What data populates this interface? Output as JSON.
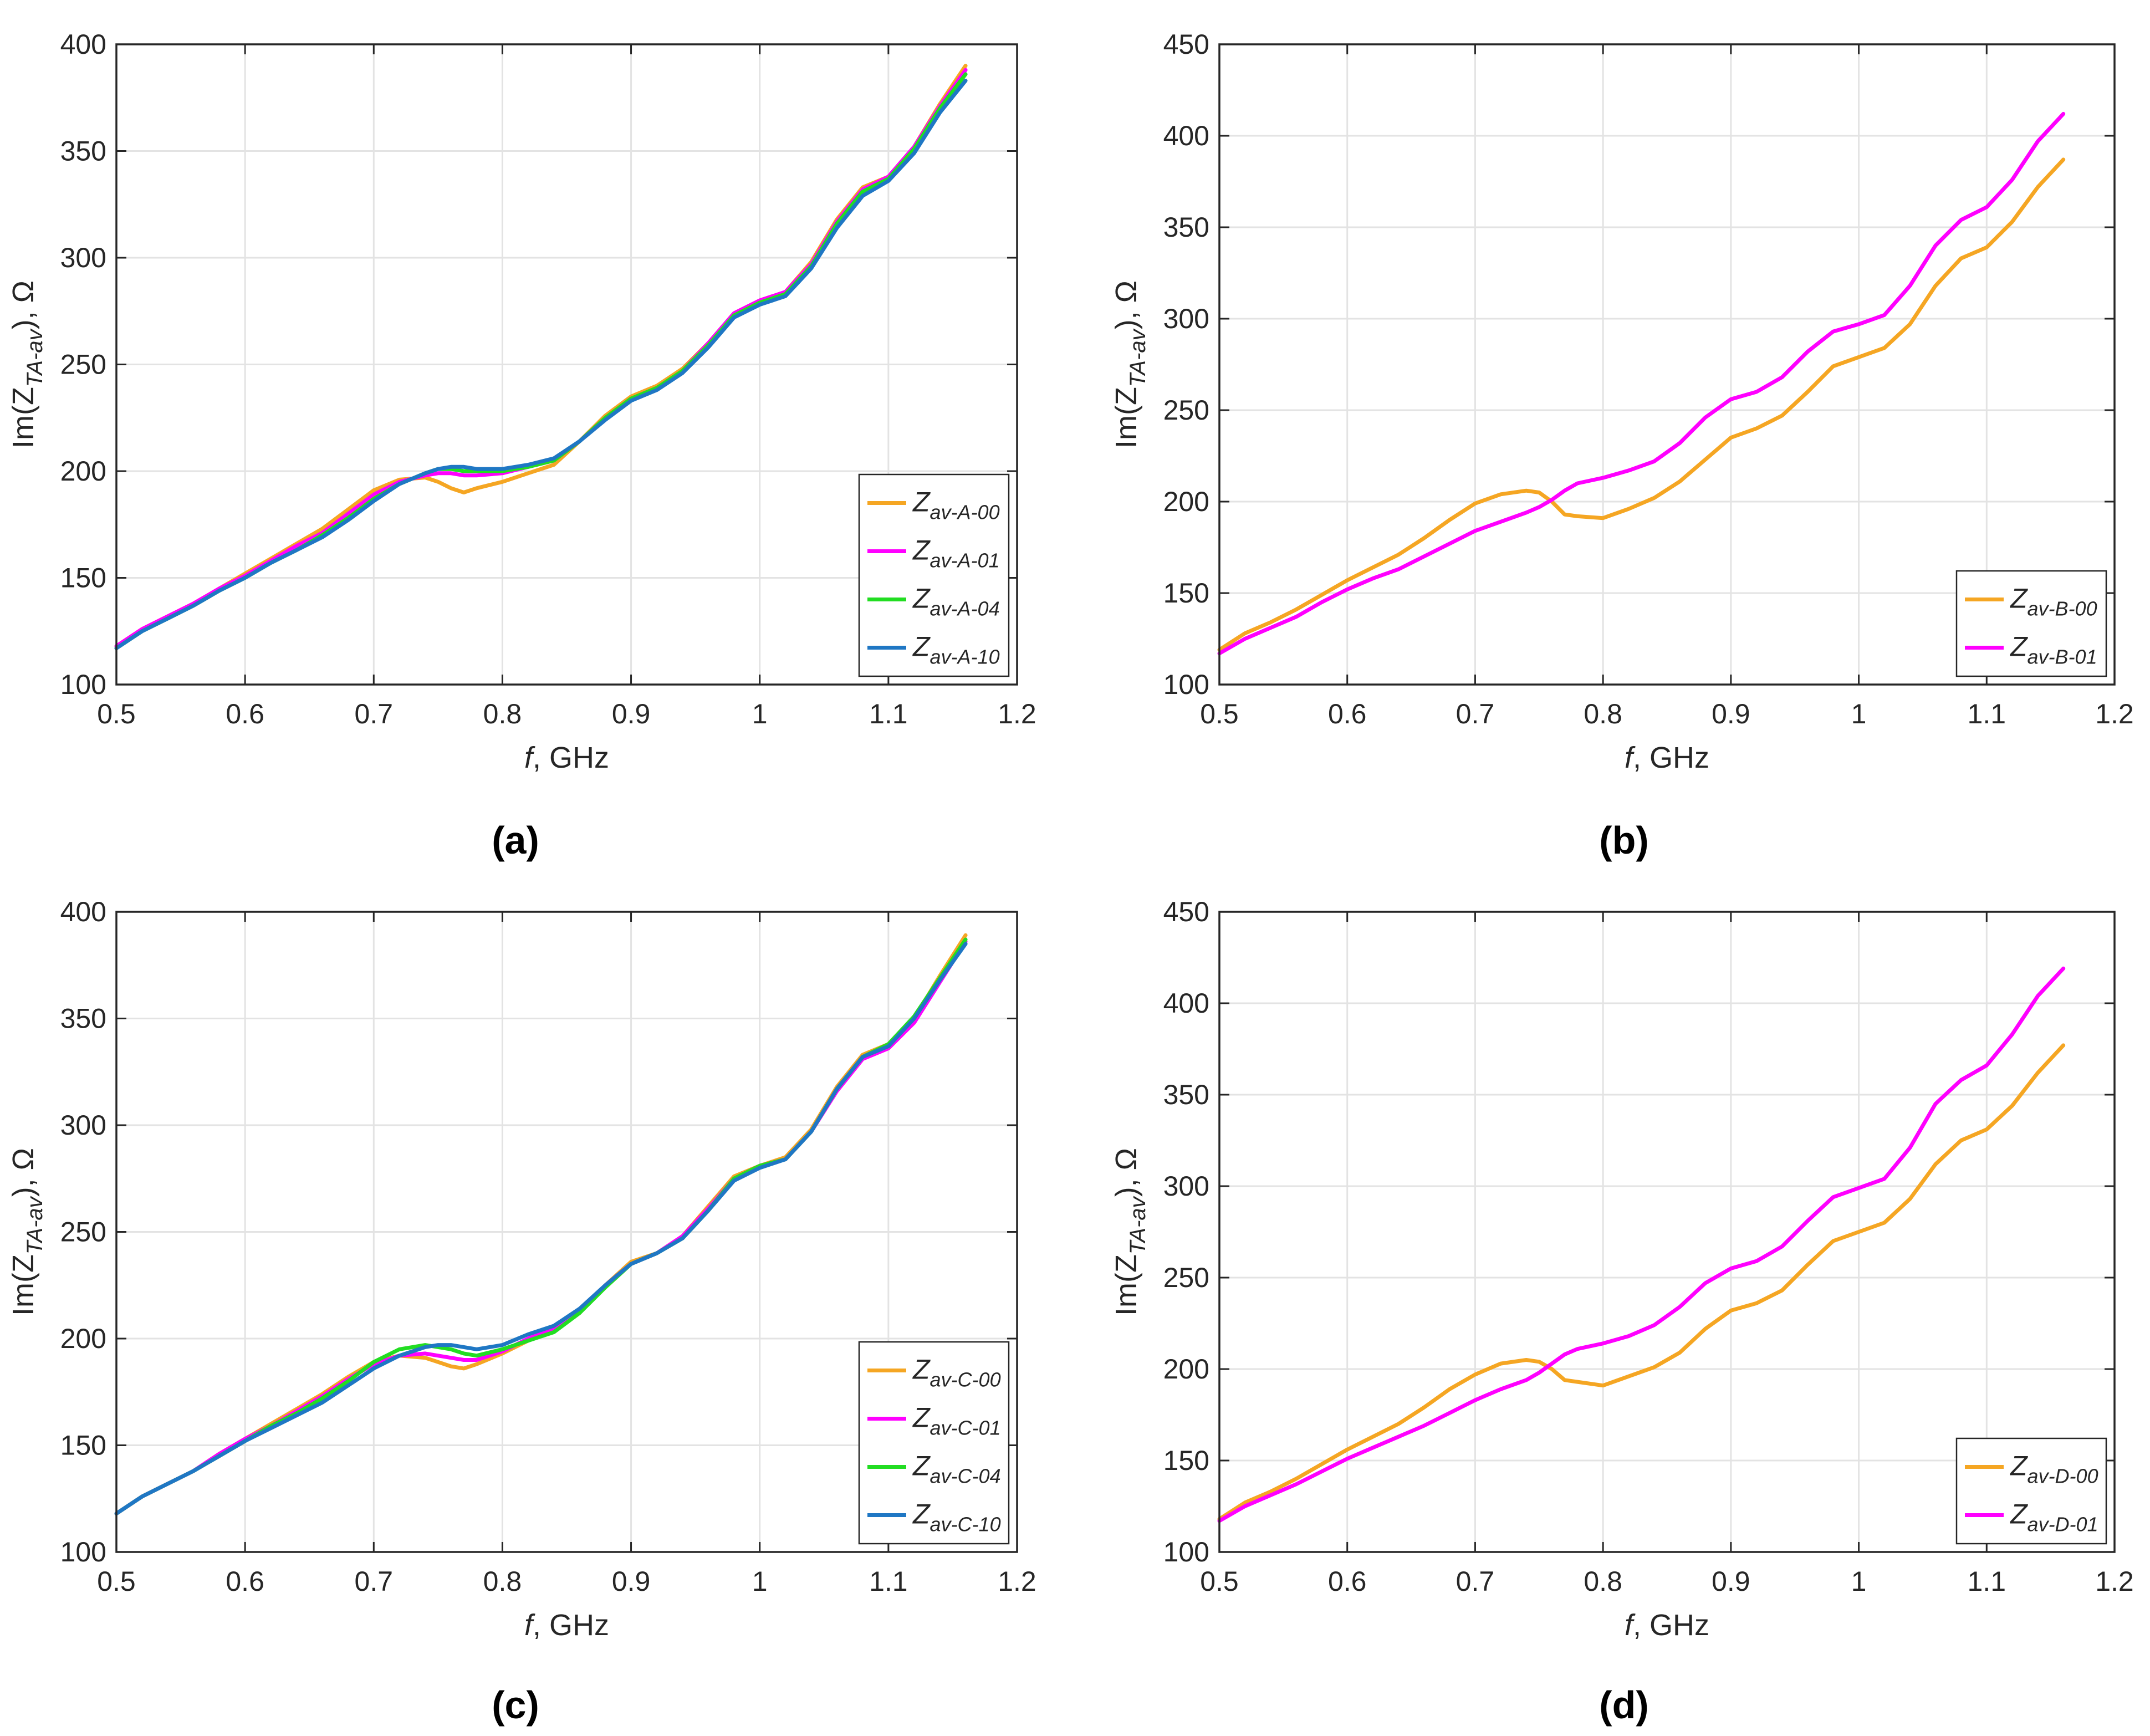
{
  "figure": {
    "panel_labels": [
      "(a)",
      "(b)",
      "(c)",
      "(d)"
    ]
  },
  "chart_data": [
    {
      "id": "a",
      "panel_label": "(a)",
      "type": "line",
      "xlabel_italic": "f",
      "xlabel_rest": ", GHz",
      "ylabel_prefix": "Im(Z",
      "ylabel_sub": "TA-av",
      "ylabel_suffix": "), Ω",
      "xlim": [
        0.5,
        1.2
      ],
      "ylim": [
        100,
        400
      ],
      "xticks": [
        0.5,
        0.6,
        0.7,
        0.8,
        0.9,
        1,
        1.1,
        1.2
      ],
      "yticks": [
        100,
        150,
        200,
        250,
        300,
        350,
        400
      ],
      "grid": true,
      "legend_position": "bottom-right",
      "x": [
        0.5,
        0.52,
        0.54,
        0.56,
        0.58,
        0.6,
        0.62,
        0.64,
        0.66,
        0.68,
        0.7,
        0.72,
        0.74,
        0.75,
        0.76,
        0.77,
        0.78,
        0.8,
        0.82,
        0.84,
        0.86,
        0.88,
        0.9,
        0.92,
        0.94,
        0.96,
        0.98,
        1.0,
        1.02,
        1.04,
        1.06,
        1.08,
        1.1,
        1.12,
        1.14,
        1.16,
        1.18,
        1.2
      ],
      "series": [
        {
          "name": "Z",
          "sub": "av-A-00",
          "color": "#f5a623",
          "values": [
            118,
            126,
            132,
            138,
            145,
            152,
            159,
            166,
            173,
            182,
            191,
            196,
            197,
            195,
            192,
            190,
            192,
            195,
            199,
            203,
            214,
            226,
            235,
            240,
            248,
            260,
            274,
            280,
            284,
            298,
            318,
            333,
            338,
            352,
            372,
            390,
            null,
            null
          ]
        },
        {
          "name": "Z",
          "sub": "av-A-01",
          "color": "#ff00ff",
          "values": [
            118,
            126,
            132,
            138,
            145,
            151,
            158,
            165,
            171,
            180,
            189,
            195,
            198,
            199,
            199,
            198,
            198,
            199,
            202,
            205,
            214,
            225,
            234,
            239,
            247,
            260,
            274,
            280,
            284,
            297,
            317,
            332,
            338,
            352,
            371,
            388,
            null,
            null
          ]
        },
        {
          "name": "Z",
          "sub": "av-A-04",
          "color": "#22dd22",
          "values": [
            117,
            125,
            131,
            137,
            144,
            150,
            157,
            163,
            170,
            178,
            187,
            194,
            199,
            201,
            201,
            200,
            200,
            200,
            202,
            205,
            214,
            225,
            234,
            239,
            247,
            259,
            273,
            279,
            283,
            296,
            316,
            331,
            337,
            351,
            370,
            386,
            null,
            null
          ]
        },
        {
          "name": "Z",
          "sub": "av-A-10",
          "color": "#1f77c4",
          "values": [
            117,
            125,
            131,
            137,
            144,
            150,
            157,
            163,
            169,
            177,
            186,
            194,
            199,
            201,
            202,
            202,
            201,
            201,
            203,
            206,
            214,
            224,
            233,
            238,
            246,
            258,
            272,
            278,
            282,
            295,
            314,
            329,
            336,
            349,
            368,
            383,
            null,
            null
          ]
        }
      ]
    },
    {
      "id": "b",
      "panel_label": "(b)",
      "type": "line",
      "xlabel_italic": "f",
      "xlabel_rest": ", GHz",
      "ylabel_prefix": "Im(Z",
      "ylabel_sub": "TA-av",
      "ylabel_suffix": "), Ω",
      "xlim": [
        0.5,
        1.2
      ],
      "ylim": [
        100,
        450
      ],
      "xticks": [
        0.5,
        0.6,
        0.7,
        0.8,
        0.9,
        1,
        1.1,
        1.2
      ],
      "yticks": [
        100,
        150,
        200,
        250,
        300,
        350,
        400,
        450
      ],
      "grid": true,
      "legend_position": "bottom-right",
      "x": [
        0.5,
        0.52,
        0.54,
        0.56,
        0.58,
        0.6,
        0.62,
        0.64,
        0.66,
        0.68,
        0.7,
        0.72,
        0.74,
        0.75,
        0.76,
        0.77,
        0.78,
        0.8,
        0.82,
        0.84,
        0.86,
        0.88,
        0.9,
        0.92,
        0.94,
        0.96,
        0.98,
        1.0,
        1.02,
        1.04,
        1.06,
        1.08,
        1.1,
        1.12,
        1.14,
        1.16,
        1.18,
        1.2
      ],
      "series": [
        {
          "name": "Z",
          "sub": "av-B-00",
          "color": "#f5a623",
          "values": [
            119,
            128,
            134,
            141,
            149,
            157,
            164,
            171,
            180,
            190,
            199,
            204,
            206,
            205,
            200,
            193,
            192,
            191,
            196,
            202,
            211,
            223,
            235,
            240,
            247,
            260,
            274,
            279,
            284,
            297,
            318,
            333,
            339,
            353,
            372,
            387,
            null,
            null
          ]
        },
        {
          "name": "Z",
          "sub": "av-B-01",
          "color": "#ff00ff",
          "values": [
            117,
            125,
            131,
            137,
            145,
            152,
            158,
            163,
            170,
            177,
            184,
            189,
            194,
            197,
            201,
            206,
            210,
            213,
            217,
            222,
            232,
            246,
            256,
            260,
            268,
            282,
            293,
            297,
            302,
            318,
            340,
            354,
            361,
            376,
            397,
            412,
            null,
            null
          ]
        }
      ]
    },
    {
      "id": "c",
      "panel_label": "(c)",
      "type": "line",
      "xlabel_italic": "f",
      "xlabel_rest": ", GHz",
      "ylabel_prefix": "Im(Z",
      "ylabel_sub": "TA-av",
      "ylabel_suffix": "), Ω",
      "xlim": [
        0.5,
        1.2
      ],
      "ylim": [
        100,
        400
      ],
      "xticks": [
        0.5,
        0.6,
        0.7,
        0.8,
        0.9,
        1,
        1.1,
        1.2
      ],
      "yticks": [
        100,
        150,
        200,
        250,
        300,
        350,
        400
      ],
      "grid": true,
      "legend_position": "bottom-right",
      "x": [
        0.5,
        0.52,
        0.54,
        0.56,
        0.58,
        0.6,
        0.62,
        0.64,
        0.66,
        0.68,
        0.7,
        0.72,
        0.74,
        0.75,
        0.76,
        0.77,
        0.78,
        0.8,
        0.82,
        0.84,
        0.86,
        0.88,
        0.9,
        0.92,
        0.94,
        0.96,
        0.98,
        1.0,
        1.02,
        1.04,
        1.06,
        1.08,
        1.1,
        1.12,
        1.14,
        1.16,
        1.18,
        1.2
      ],
      "series": [
        {
          "name": "Z",
          "sub": "av-C-00",
          "color": "#f5a623",
          "values": [
            118,
            126,
            132,
            138,
            146,
            153,
            160,
            167,
            174,
            182,
            189,
            192,
            191,
            189,
            187,
            186,
            188,
            193,
            199,
            204,
            212,
            225,
            236,
            240,
            248,
            262,
            276,
            281,
            285,
            298,
            318,
            333,
            338,
            350,
            370,
            389,
            null,
            null
          ]
        },
        {
          "name": "Z",
          "sub": "av-C-01",
          "color": "#ff00ff",
          "values": [
            118,
            126,
            132,
            138,
            146,
            153,
            159,
            166,
            173,
            181,
            188,
            192,
            193,
            192,
            191,
            190,
            190,
            194,
            200,
            205,
            213,
            225,
            235,
            240,
            248,
            261,
            275,
            281,
            284,
            297,
            316,
            331,
            336,
            348,
            367,
            386,
            null,
            null
          ]
        },
        {
          "name": "Z",
          "sub": "av-C-04",
          "color": "#22dd22",
          "values": [
            118,
            126,
            132,
            138,
            145,
            152,
            159,
            165,
            172,
            180,
            189,
            195,
            197,
            196,
            195,
            193,
            192,
            195,
            199,
            203,
            212,
            224,
            235,
            240,
            247,
            260,
            275,
            281,
            284,
            297,
            317,
            332,
            338,
            351,
            369,
            387,
            null,
            null
          ]
        },
        {
          "name": "Z",
          "sub": "av-C-10",
          "color": "#1f77c4",
          "values": [
            118,
            126,
            132,
            138,
            145,
            152,
            158,
            164,
            170,
            178,
            186,
            192,
            196,
            197,
            197,
            196,
            195,
            197,
            202,
            206,
            214,
            225,
            235,
            240,
            247,
            260,
            274,
            280,
            284,
            297,
            317,
            332,
            337,
            350,
            368,
            385,
            null,
            null
          ]
        }
      ]
    },
    {
      "id": "d",
      "panel_label": "(d)",
      "type": "line",
      "xlabel_italic": "f",
      "xlabel_rest": ", GHz",
      "ylabel_prefix": "Im(Z",
      "ylabel_sub": "TA-av",
      "ylabel_suffix": "), Ω",
      "xlim": [
        0.5,
        1.2
      ],
      "ylim": [
        100,
        450
      ],
      "xticks": [
        0.5,
        0.6,
        0.7,
        0.8,
        0.9,
        1,
        1.1,
        1.2
      ],
      "yticks": [
        100,
        150,
        200,
        250,
        300,
        350,
        400,
        450
      ],
      "grid": true,
      "legend_position": "bottom-right",
      "x": [
        0.5,
        0.52,
        0.54,
        0.56,
        0.58,
        0.6,
        0.62,
        0.64,
        0.66,
        0.68,
        0.7,
        0.72,
        0.74,
        0.75,
        0.76,
        0.77,
        0.78,
        0.8,
        0.82,
        0.84,
        0.86,
        0.88,
        0.9,
        0.92,
        0.94,
        0.96,
        0.98,
        1.0,
        1.02,
        1.04,
        1.06,
        1.08,
        1.1,
        1.12,
        1.14,
        1.16,
        1.18,
        1.2
      ],
      "series": [
        {
          "name": "Z",
          "sub": "av-D-00",
          "color": "#f5a623",
          "values": [
            118,
            127,
            133,
            140,
            148,
            156,
            163,
            170,
            179,
            189,
            197,
            203,
            205,
            204,
            200,
            194,
            193,
            191,
            196,
            201,
            209,
            222,
            232,
            236,
            243,
            257,
            270,
            275,
            280,
            293,
            312,
            325,
            331,
            344,
            362,
            377,
            null,
            null
          ]
        },
        {
          "name": "Z",
          "sub": "av-D-01",
          "color": "#ff00ff",
          "values": [
            117,
            125,
            131,
            137,
            144,
            151,
            157,
            163,
            169,
            176,
            183,
            189,
            194,
            198,
            203,
            208,
            211,
            214,
            218,
            224,
            234,
            247,
            255,
            259,
            267,
            281,
            294,
            299,
            304,
            321,
            345,
            358,
            366,
            383,
            404,
            419,
            null,
            null
          ]
        }
      ]
    }
  ]
}
